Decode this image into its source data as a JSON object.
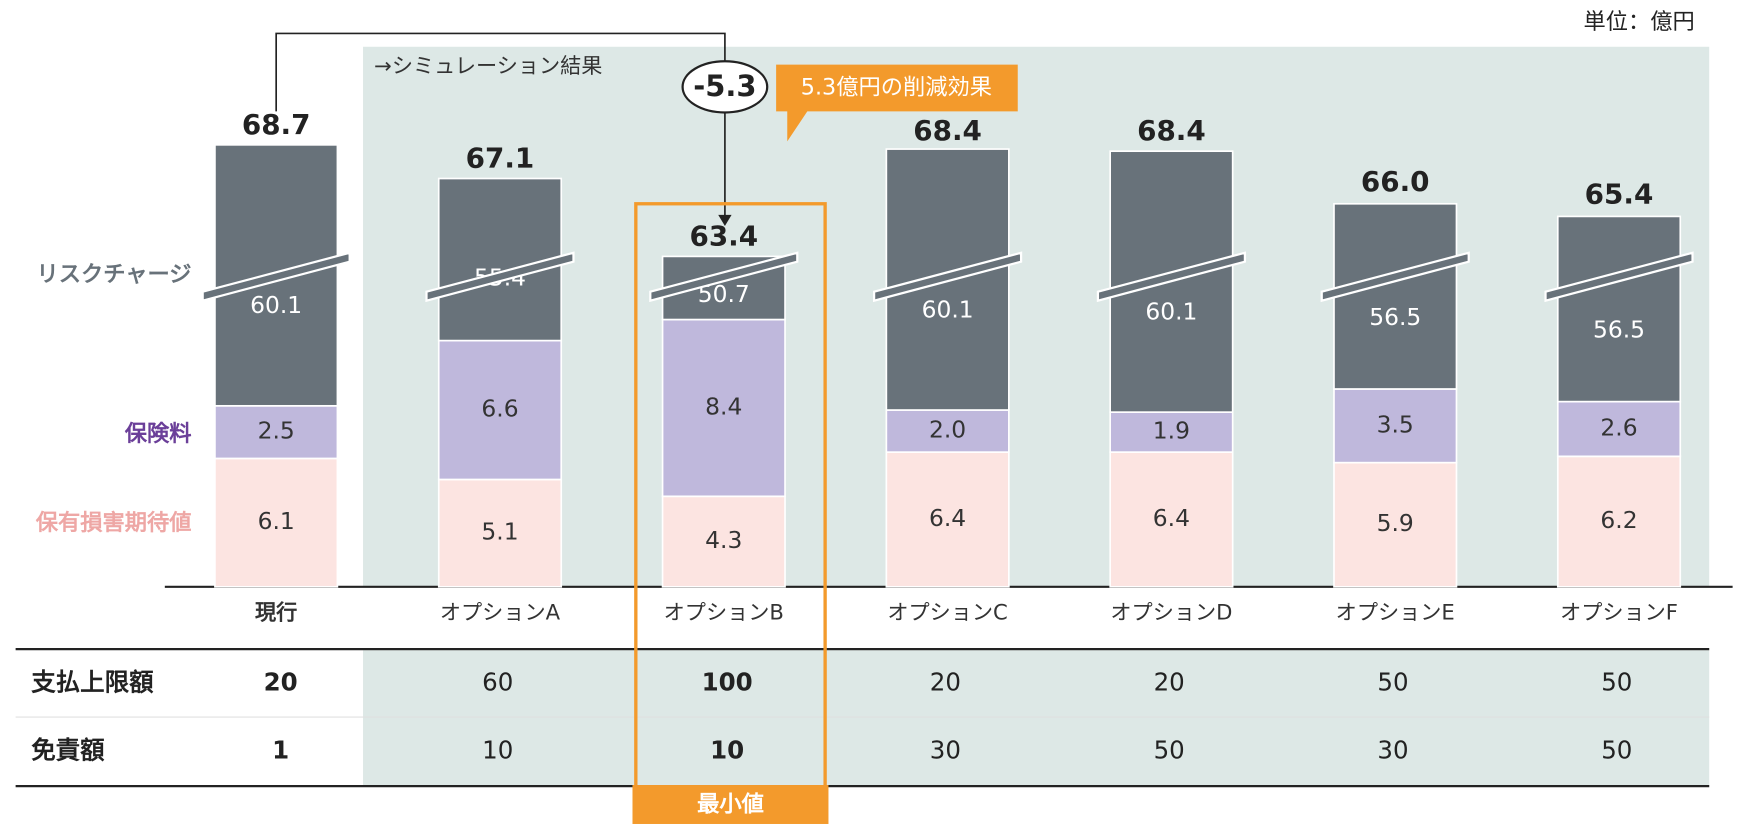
{
  "chart_data": {
    "type": "stacked_bar",
    "unit": "単位：億円",
    "subtitle": "→シミュレーション結果",
    "categories": [
      "現行",
      "オプションA",
      "オプションB",
      "オプションC",
      "オプションD",
      "オプションE",
      "オプションF"
    ],
    "series": [
      {
        "name": "保有損害期待値",
        "color": "#fce4e1",
        "label_color": "#eea7a5",
        "values": [
          6.1,
          5.1,
          4.3,
          6.4,
          6.4,
          5.9,
          6.2
        ],
        "value_labels": [
          "6.1",
          "5.1",
          "4.3",
          "6.4",
          "6.4",
          "5.9",
          "6.2"
        ]
      },
      {
        "name": "保険料",
        "color": "#bfb8dc",
        "label_color": "#6b3f99",
        "values": [
          2.5,
          6.6,
          8.4,
          2.0,
          1.9,
          3.5,
          2.6
        ],
        "value_labels": [
          "2.5",
          "6.6",
          "8.4",
          "2.0",
          "1.9",
          "3.5",
          "2.6"
        ]
      },
      {
        "name": "リスクチャージ",
        "color": "#68727a",
        "label_color": "#68727a",
        "values": [
          60.1,
          55.4,
          50.7,
          60.1,
          60.1,
          56.5,
          56.5
        ],
        "value_labels": [
          "60.1",
          "55.4",
          "50.7",
          "60.1",
          "60.1",
          "56.5",
          "56.5"
        ]
      }
    ],
    "totals": {
      "values": [
        68.7,
        67.1,
        63.4,
        68.4,
        68.4,
        66.0,
        65.4
      ],
      "value_labels": [
        "68.7",
        "67.1",
        "63.4",
        "68.4",
        "68.4",
        "66.0",
        "65.4"
      ]
    },
    "annotations": {
      "difference": "-5.3",
      "callout": "5.3億円の削減効果",
      "highlight": "最小値"
    }
  },
  "table": {
    "rows": [
      [
        "支払上限額",
        20,
        60,
        100,
        20,
        20,
        50,
        50
      ],
      [
        "免責額",
        1,
        10,
        10,
        30,
        50,
        30,
        50
      ]
    ]
  }
}
